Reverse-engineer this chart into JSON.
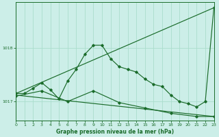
{
  "title": "Graphe pression niveau de la mer (hPa)",
  "bg_color": "#cceee8",
  "grid_color": "#aaddcc",
  "line_color": "#1a6b2a",
  "xlim": [
    0,
    23
  ],
  "ylim": [
    1016.65,
    1018.85
  ],
  "yticks": [
    1017,
    1018
  ],
  "xticks": [
    0,
    1,
    2,
    3,
    4,
    5,
    6,
    7,
    8,
    9,
    10,
    11,
    12,
    13,
    14,
    15,
    16,
    17,
    18,
    19,
    20,
    21,
    22,
    23
  ],
  "series_jagged": {
    "x": [
      0,
      1,
      2,
      3,
      4,
      5,
      6,
      7,
      8,
      9,
      10,
      11,
      12,
      13,
      14,
      15,
      16,
      17,
      18,
      19,
      20,
      21,
      22,
      23
    ],
    "y": [
      1017.15,
      1017.15,
      1017.25,
      1017.35,
      1017.22,
      1017.05,
      1017.38,
      1017.6,
      1017.88,
      1018.05,
      1018.05,
      1017.8,
      1017.65,
      1017.6,
      1017.55,
      1017.42,
      1017.32,
      1017.28,
      1017.12,
      1017.0,
      1016.96,
      1016.9,
      1017.0,
      1018.75
    ]
  },
  "series_linear_up": {
    "x": [
      0,
      23
    ],
    "y": [
      1017.15,
      1018.75
    ]
  },
  "series_lower_markers": {
    "x": [
      0,
      3,
      6,
      9,
      12,
      15,
      18,
      21,
      23
    ],
    "y": [
      1017.1,
      1017.2,
      1017.0,
      1017.2,
      1016.98,
      1016.88,
      1016.78,
      1016.72,
      1016.72
    ]
  },
  "series_linear_down": {
    "x": [
      0,
      23
    ],
    "y": [
      1017.12,
      1016.72
    ]
  }
}
